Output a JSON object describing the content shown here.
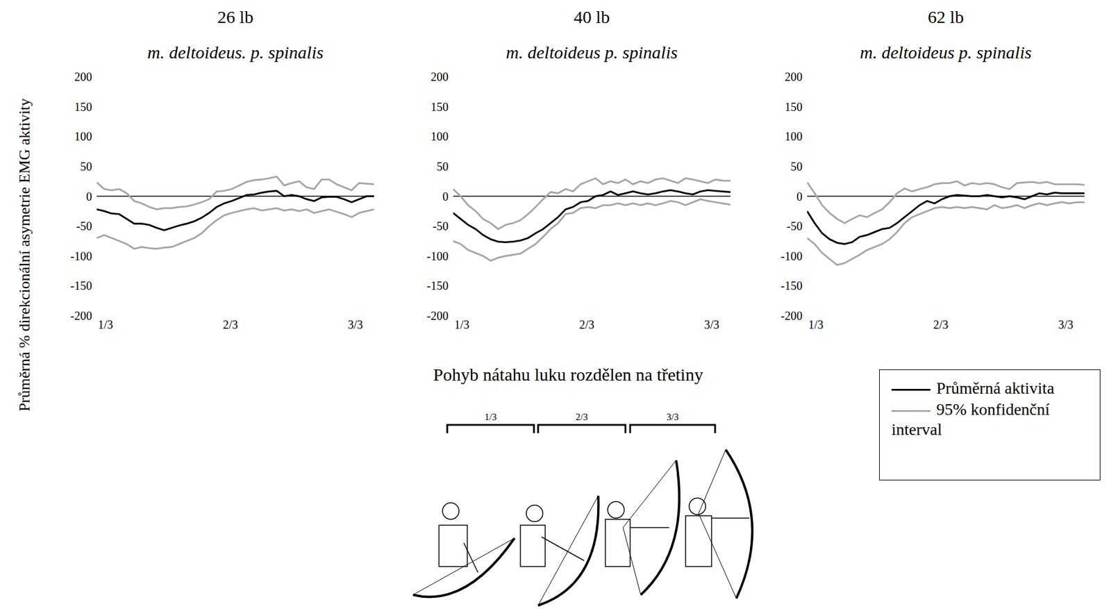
{
  "y_axis_label": "Průměrná % direkcionální asymetrie EMG aktivity",
  "x_axis_label": "Pohyb nátahu luku rozdělen na třetiny",
  "legend": "bottom right",
  "phases": [
    "1/3",
    "2/3",
    "3/3"
  ],
  "chart_data": [
    {
      "type": "line",
      "title": "26 lb",
      "subtitle": "m. deltoideus. p. spinalis",
      "x": [
        0.31,
        0.33,
        0.35,
        0.37,
        0.39,
        0.41,
        0.43,
        0.45,
        0.47,
        0.49,
        0.51,
        0.53,
        0.55,
        0.57,
        0.59,
        0.61,
        0.63,
        0.65,
        0.67,
        0.69,
        0.71,
        0.73,
        0.75,
        0.77,
        0.79,
        0.81,
        0.83,
        0.85,
        0.87,
        0.89,
        0.91,
        0.93,
        0.95,
        0.97,
        0.99,
        1.01,
        1.03,
        1.05
      ],
      "xlim": [
        0.31,
        1.05
      ],
      "xticks": [
        {
          "value": 0.3333,
          "label": "1/3"
        },
        {
          "value": 0.6667,
          "label": "2/3"
        },
        {
          "value": 1,
          "label": "3/3"
        }
      ],
      "ylim": [
        -200,
        200
      ],
      "yticks": [
        -200,
        -150,
        -100,
        -50,
        0,
        50,
        100,
        150,
        200
      ],
      "series": [
        {
          "name": "Průměrná aktivita",
          "color": "#000000",
          "values": [
            -22,
            -25,
            -29,
            -30,
            -38,
            -46,
            -46,
            -48,
            -53,
            -57,
            -53,
            -49,
            -46,
            -42,
            -36,
            -28,
            -18,
            -12,
            -8,
            -3,
            2,
            3,
            6,
            8,
            9,
            0,
            2,
            0,
            -5,
            -8,
            -2,
            -1,
            -1,
            -5,
            -10,
            -5,
            0,
            0
          ]
        },
        {
          "name": "95% konfidenční interval",
          "color": "#a6a6a6",
          "upper": [
            23,
            12,
            10,
            12,
            5,
            -8,
            -12,
            -18,
            -22,
            -20,
            -20,
            -18,
            -17,
            -14,
            -10,
            -5,
            8,
            9,
            12,
            18,
            24,
            27,
            28,
            30,
            33,
            18,
            22,
            25,
            15,
            12,
            28,
            28,
            20,
            15,
            10,
            22,
            21,
            20
          ],
          "lower": [
            -70,
            -65,
            -70,
            -75,
            -80,
            -88,
            -85,
            -87,
            -88,
            -86,
            -85,
            -80,
            -75,
            -70,
            -62,
            -50,
            -40,
            -32,
            -28,
            -25,
            -22,
            -20,
            -24,
            -22,
            -20,
            -24,
            -22,
            -25,
            -22,
            -28,
            -25,
            -22,
            -26,
            -30,
            -35,
            -28,
            -25,
            -22
          ]
        }
      ]
    },
    {
      "type": "line",
      "title": "40 lb",
      "subtitle": "m. deltoideus p. spinalis",
      "x": [
        0.31,
        0.33,
        0.35,
        0.37,
        0.39,
        0.41,
        0.43,
        0.45,
        0.47,
        0.49,
        0.51,
        0.53,
        0.55,
        0.57,
        0.59,
        0.61,
        0.63,
        0.65,
        0.67,
        0.69,
        0.71,
        0.73,
        0.75,
        0.77,
        0.79,
        0.81,
        0.83,
        0.85,
        0.87,
        0.89,
        0.91,
        0.93,
        0.95,
        0.97,
        0.99,
        1.01,
        1.03,
        1.05
      ],
      "xlim": [
        0.31,
        1.05
      ],
      "xticks": [
        {
          "value": 0.3333,
          "label": "1/3"
        },
        {
          "value": 0.6667,
          "label": "2/3"
        },
        {
          "value": 1,
          "label": "3/3"
        }
      ],
      "ylim": [
        -200,
        200
      ],
      "yticks": [
        -200,
        -150,
        -100,
        -50,
        0,
        50,
        100,
        150,
        200
      ],
      "series": [
        {
          "name": "Průměrná aktivita",
          "color": "#000000",
          "values": [
            -28,
            -38,
            -48,
            -55,
            -65,
            -72,
            -76,
            -77,
            -76,
            -74,
            -70,
            -62,
            -55,
            -45,
            -35,
            -22,
            -18,
            -10,
            -8,
            0,
            2,
            8,
            2,
            5,
            8,
            5,
            3,
            5,
            8,
            10,
            8,
            5,
            3,
            8,
            10,
            9,
            8,
            7
          ]
        },
        {
          "name": "95% konfidenční interval",
          "color": "#a6a6a6",
          "upper": [
            12,
            0,
            -15,
            -25,
            -38,
            -45,
            -55,
            -48,
            -45,
            -40,
            -30,
            -18,
            -5,
            7,
            5,
            12,
            8,
            20,
            25,
            30,
            20,
            25,
            22,
            28,
            20,
            25,
            22,
            28,
            30,
            26,
            22,
            30,
            28,
            25,
            22,
            28,
            26,
            26
          ],
          "lower": [
            -75,
            -80,
            -90,
            -95,
            -100,
            -108,
            -103,
            -100,
            -98,
            -96,
            -88,
            -80,
            -68,
            -55,
            -45,
            -30,
            -28,
            -20,
            -18,
            -20,
            -15,
            -15,
            -12,
            -15,
            -12,
            -15,
            -12,
            -15,
            -12,
            -8,
            -10,
            -15,
            -10,
            -5,
            -8,
            -10,
            -12,
            -14
          ]
        }
      ]
    },
    {
      "type": "line",
      "title": "62 lb",
      "subtitle": "m. deltoideus p. spinalis",
      "x": [
        0.31,
        0.33,
        0.35,
        0.37,
        0.39,
        0.41,
        0.43,
        0.45,
        0.47,
        0.49,
        0.51,
        0.53,
        0.55,
        0.57,
        0.59,
        0.61,
        0.63,
        0.65,
        0.67,
        0.69,
        0.71,
        0.73,
        0.75,
        0.77,
        0.79,
        0.81,
        0.83,
        0.85,
        0.87,
        0.89,
        0.91,
        0.93,
        0.95,
        0.97,
        0.99,
        1.01,
        1.03,
        1.05
      ],
      "xlim": [
        0.31,
        1.05
      ],
      "xticks": [
        {
          "value": 0.3333,
          "label": "1/3"
        },
        {
          "value": 0.6667,
          "label": "2/3"
        },
        {
          "value": 1,
          "label": "3/3"
        }
      ],
      "ylim": [
        -200,
        200
      ],
      "yticks": [
        -200,
        -150,
        -100,
        -50,
        0,
        50,
        100,
        150,
        200
      ],
      "series": [
        {
          "name": "Průměrná aktivita",
          "color": "#000000",
          "values": [
            -25,
            -45,
            -62,
            -72,
            -78,
            -80,
            -77,
            -68,
            -65,
            -60,
            -55,
            -53,
            -45,
            -35,
            -25,
            -15,
            -8,
            -12,
            -5,
            0,
            2,
            1,
            0,
            0,
            2,
            0,
            -2,
            0,
            -2,
            -5,
            0,
            5,
            3,
            6,
            5,
            5,
            5,
            5
          ]
        },
        {
          "name": "95% konfidenční interval",
          "color": "#a6a6a6",
          "upper": [
            23,
            5,
            -15,
            -28,
            -38,
            -45,
            -38,
            -32,
            -35,
            -28,
            -22,
            -10,
            5,
            13,
            8,
            12,
            15,
            20,
            22,
            22,
            25,
            18,
            22,
            20,
            22,
            20,
            15,
            12,
            22,
            23,
            24,
            22,
            24,
            20,
            20,
            20,
            20,
            19
          ],
          "lower": [
            -70,
            -80,
            -95,
            -105,
            -115,
            -112,
            -105,
            -98,
            -90,
            -85,
            -80,
            -72,
            -60,
            -45,
            -35,
            -30,
            -25,
            -20,
            -18,
            -20,
            -18,
            -20,
            -18,
            -20,
            -22,
            -15,
            -20,
            -18,
            -15,
            -20,
            -15,
            -12,
            -15,
            -12,
            -10,
            -12,
            -10,
            -10
          ]
        }
      ]
    }
  ]
}
